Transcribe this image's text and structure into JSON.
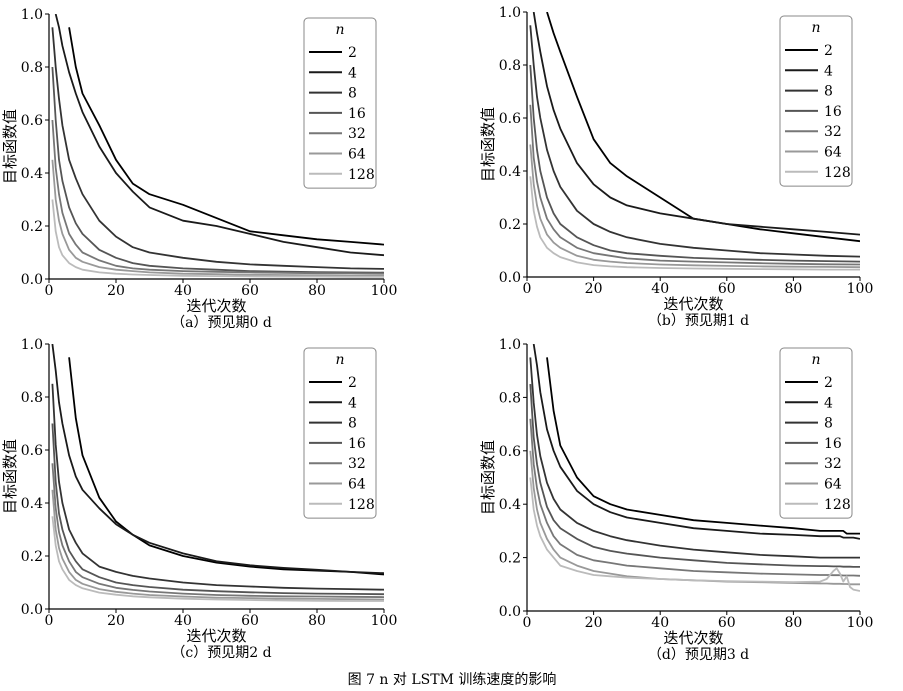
{
  "figure_caption": "图 7 n 对 LSTM 训练速度的影响",
  "chart_data": [
    {
      "type": "line",
      "caption": "（a）预见期0 d",
      "xlabel": "迭代次数",
      "ylabel": "目标函数值",
      "xlim": [
        0,
        100
      ],
      "ylim": [
        0,
        1.0
      ],
      "xticks": [
        "0",
        "20",
        "40",
        "60",
        "80",
        "100"
      ],
      "yticks": [
        "0.0",
        "0.2",
        "0.4",
        "0.6",
        "0.8",
        "1.0"
      ],
      "legend_title": "n",
      "legend_position": "top-right",
      "x": [
        1,
        2,
        3,
        4,
        6,
        8,
        10,
        15,
        20,
        25,
        30,
        40,
        50,
        60,
        70,
        80,
        90,
        100
      ],
      "series": [
        {
          "name": "2",
          "color": "#000000",
          "values": [
            null,
            null,
            null,
            null,
            0.95,
            0.8,
            0.7,
            0.58,
            0.45,
            0.36,
            0.32,
            0.28,
            0.23,
            0.18,
            0.165,
            0.15,
            0.14,
            0.13
          ]
        },
        {
          "name": "4",
          "color": "#1a1a1a",
          "values": [
            null,
            1.0,
            0.95,
            0.88,
            0.78,
            0.7,
            0.63,
            0.5,
            0.4,
            0.33,
            0.27,
            0.22,
            0.2,
            0.17,
            0.14,
            0.12,
            0.1,
            0.09
          ]
        },
        {
          "name": "8",
          "color": "#333333",
          "values": [
            0.95,
            0.8,
            0.68,
            0.58,
            0.45,
            0.38,
            0.32,
            0.22,
            0.16,
            0.12,
            0.1,
            0.08,
            0.065,
            0.055,
            0.05,
            0.045,
            0.04,
            0.038
          ]
        },
        {
          "name": "16",
          "color": "#555555",
          "values": [
            0.8,
            0.6,
            0.45,
            0.37,
            0.27,
            0.21,
            0.17,
            0.11,
            0.08,
            0.06,
            0.05,
            0.04,
            0.035,
            0.03,
            0.028,
            0.026,
            0.025,
            0.024
          ]
        },
        {
          "name": "32",
          "color": "#777777",
          "values": [
            0.6,
            0.42,
            0.32,
            0.25,
            0.17,
            0.13,
            0.1,
            0.07,
            0.05,
            0.04,
            0.035,
            0.03,
            0.027,
            0.025,
            0.023,
            0.022,
            0.021,
            0.02
          ]
        },
        {
          "name": "64",
          "color": "#999999",
          "values": [
            0.45,
            0.3,
            0.22,
            0.17,
            0.11,
            0.08,
            0.065,
            0.045,
            0.035,
            0.03,
            0.025,
            0.02,
            0.018,
            0.016,
            0.015,
            0.014,
            0.013,
            0.012
          ]
        },
        {
          "name": "128",
          "color": "#bbbbbb",
          "values": [
            0.3,
            0.18,
            0.12,
            0.09,
            0.06,
            0.045,
            0.035,
            0.025,
            0.02,
            0.017,
            0.015,
            0.012,
            0.011,
            0.01,
            0.009,
            0.009,
            0.008,
            0.008
          ]
        }
      ]
    },
    {
      "type": "line",
      "caption": "（b）预见期1 d",
      "xlabel": "迭代次数",
      "ylabel": "目标函数值",
      "xlim": [
        0,
        100
      ],
      "ylim": [
        0,
        1.0
      ],
      "xticks": [
        "0",
        "20",
        "40",
        "60",
        "80",
        "100"
      ],
      "yticks": [
        "0.0",
        "0.2",
        "0.4",
        "0.6",
        "0.8",
        "1.0"
      ],
      "legend_title": "n",
      "legend_position": "top-right",
      "x": [
        1,
        2,
        3,
        4,
        6,
        8,
        10,
        15,
        20,
        25,
        30,
        40,
        50,
        60,
        70,
        80,
        90,
        100
      ],
      "series": [
        {
          "name": "2",
          "color": "#000000",
          "values": [
            null,
            null,
            null,
            null,
            1.0,
            0.92,
            0.85,
            0.68,
            0.52,
            0.43,
            0.38,
            0.3,
            0.22,
            0.2,
            0.18,
            0.165,
            0.15,
            0.135
          ]
        },
        {
          "name": "4",
          "color": "#1a1a1a",
          "values": [
            null,
            1.0,
            0.92,
            0.85,
            0.72,
            0.63,
            0.56,
            0.43,
            0.35,
            0.3,
            0.27,
            0.24,
            0.22,
            0.2,
            0.19,
            0.18,
            0.17,
            0.16
          ]
        },
        {
          "name": "8",
          "color": "#333333",
          "values": [
            0.95,
            0.8,
            0.68,
            0.6,
            0.48,
            0.4,
            0.34,
            0.25,
            0.2,
            0.17,
            0.15,
            0.125,
            0.11,
            0.1,
            0.09,
            0.085,
            0.08,
            0.077
          ]
        },
        {
          "name": "16",
          "color": "#555555",
          "values": [
            0.8,
            0.6,
            0.48,
            0.4,
            0.3,
            0.24,
            0.2,
            0.15,
            0.12,
            0.1,
            0.09,
            0.08,
            0.072,
            0.068,
            0.065,
            0.062,
            0.06,
            0.058
          ]
        },
        {
          "name": "32",
          "color": "#777777",
          "values": [
            0.65,
            0.45,
            0.36,
            0.3,
            0.22,
            0.18,
            0.15,
            0.11,
            0.09,
            0.08,
            0.07,
            0.062,
            0.058,
            0.055,
            0.052,
            0.05,
            0.048,
            0.047
          ]
        },
        {
          "name": "64",
          "color": "#999999",
          "values": [
            0.5,
            0.35,
            0.27,
            0.22,
            0.16,
            0.13,
            0.11,
            0.08,
            0.065,
            0.058,
            0.053,
            0.047,
            0.044,
            0.042,
            0.04,
            0.039,
            0.038,
            0.037
          ]
        },
        {
          "name": "128",
          "color": "#bbbbbb",
          "values": [
            0.38,
            0.25,
            0.19,
            0.15,
            0.11,
            0.09,
            0.075,
            0.055,
            0.045,
            0.04,
            0.037,
            0.034,
            0.032,
            0.031,
            0.03,
            0.029,
            0.028,
            0.028
          ]
        }
      ]
    },
    {
      "type": "line",
      "caption": "（c）预见期2 d",
      "xlabel": "迭代次数",
      "ylabel": "目标函数值",
      "xlim": [
        0,
        100
      ],
      "ylim": [
        0,
        1.0
      ],
      "xticks": [
        "0",
        "20",
        "40",
        "60",
        "80",
        "100"
      ],
      "yticks": [
        "0.0",
        "0.2",
        "0.4",
        "0.6",
        "0.8",
        "1.0"
      ],
      "legend_title": "n",
      "legend_position": "top-right",
      "x": [
        1,
        2,
        3,
        4,
        6,
        8,
        10,
        15,
        20,
        25,
        30,
        40,
        50,
        60,
        70,
        80,
        90,
        100
      ],
      "series": [
        {
          "name": "2",
          "color": "#000000",
          "values": [
            null,
            null,
            null,
            null,
            0.95,
            0.72,
            0.58,
            0.42,
            0.33,
            0.28,
            0.24,
            0.2,
            0.175,
            0.16,
            0.15,
            0.145,
            0.14,
            0.13
          ]
        },
        {
          "name": "4",
          "color": "#1a1a1a",
          "values": [
            1.0,
            0.9,
            0.78,
            0.7,
            0.58,
            0.5,
            0.45,
            0.38,
            0.32,
            0.28,
            0.25,
            0.21,
            0.18,
            0.165,
            0.155,
            0.148,
            0.14,
            0.135
          ]
        },
        {
          "name": "8",
          "color": "#333333",
          "values": [
            0.85,
            0.62,
            0.48,
            0.4,
            0.3,
            0.25,
            0.21,
            0.16,
            0.14,
            0.125,
            0.115,
            0.1,
            0.09,
            0.085,
            0.08,
            0.077,
            0.075,
            0.073
          ]
        },
        {
          "name": "16",
          "color": "#555555",
          "values": [
            0.7,
            0.48,
            0.36,
            0.3,
            0.22,
            0.18,
            0.15,
            0.12,
            0.1,
            0.09,
            0.083,
            0.073,
            0.067,
            0.063,
            0.06,
            0.058,
            0.057,
            0.056
          ]
        },
        {
          "name": "32",
          "color": "#777777",
          "values": [
            0.55,
            0.38,
            0.29,
            0.24,
            0.18,
            0.14,
            0.12,
            0.095,
            0.08,
            0.072,
            0.066,
            0.058,
            0.053,
            0.05,
            0.048,
            0.047,
            0.046,
            0.045
          ]
        },
        {
          "name": "64",
          "color": "#999999",
          "values": [
            0.45,
            0.3,
            0.23,
            0.19,
            0.14,
            0.11,
            0.095,
            0.075,
            0.065,
            0.058,
            0.053,
            0.047,
            0.043,
            0.041,
            0.039,
            0.038,
            0.037,
            0.036
          ]
        },
        {
          "name": "128",
          "color": "#bbbbbb",
          "values": [
            0.35,
            0.24,
            0.18,
            0.15,
            0.11,
            0.09,
            0.078,
            0.062,
            0.054,
            0.048,
            0.044,
            0.039,
            0.036,
            0.034,
            0.032,
            0.031,
            0.03,
            0.03
          ]
        }
      ]
    },
    {
      "type": "line",
      "caption": "（d）预见期3 d",
      "xlabel": "迭代次数",
      "ylabel": "目标函数值",
      "xlim": [
        0,
        100
      ],
      "ylim": [
        0,
        1.0
      ],
      "xticks": [
        "0",
        "20",
        "40",
        "60",
        "80",
        "100"
      ],
      "yticks": [
        "0.0",
        "0.2",
        "0.4",
        "0.6",
        "0.8",
        "1.0"
      ],
      "legend_title": "n",
      "legend_position": "top-right",
      "x": [
        1,
        2,
        3,
        4,
        6,
        8,
        10,
        15,
        20,
        25,
        30,
        40,
        50,
        60,
        70,
        80,
        88,
        90,
        92,
        93,
        94,
        95,
        96,
        97,
        98,
        100
      ],
      "series": [
        {
          "name": "2",
          "color": "#000000",
          "values": [
            null,
            null,
            null,
            null,
            0.95,
            0.75,
            0.62,
            0.5,
            0.43,
            0.4,
            0.38,
            0.36,
            0.34,
            0.33,
            0.32,
            0.31,
            0.3,
            0.3,
            0.3,
            0.3,
            0.3,
            0.3,
            0.29,
            0.29,
            0.29,
            0.29
          ]
        },
        {
          "name": "4",
          "color": "#1a1a1a",
          "values": [
            null,
            1.0,
            0.92,
            0.82,
            0.68,
            0.6,
            0.54,
            0.45,
            0.4,
            0.37,
            0.35,
            0.33,
            0.31,
            0.3,
            0.29,
            0.285,
            0.28,
            0.28,
            0.28,
            0.28,
            0.28,
            0.275,
            0.275,
            0.275,
            0.275,
            0.27
          ]
        },
        {
          "name": "8",
          "color": "#333333",
          "values": [
            0.95,
            0.78,
            0.66,
            0.58,
            0.48,
            0.42,
            0.38,
            0.33,
            0.3,
            0.28,
            0.265,
            0.245,
            0.23,
            0.22,
            0.21,
            0.205,
            0.2,
            0.2,
            0.2,
            0.2,
            0.2,
            0.2,
            0.2,
            0.2,
            0.2,
            0.2
          ]
        },
        {
          "name": "16",
          "color": "#555555",
          "values": [
            0.85,
            0.65,
            0.55,
            0.48,
            0.39,
            0.34,
            0.31,
            0.27,
            0.24,
            0.225,
            0.215,
            0.2,
            0.19,
            0.18,
            0.175,
            0.17,
            0.168,
            0.168,
            0.167,
            0.167,
            0.167,
            0.166,
            0.166,
            0.166,
            0.165,
            0.165
          ]
        },
        {
          "name": "32",
          "color": "#777777",
          "values": [
            0.72,
            0.55,
            0.46,
            0.4,
            0.33,
            0.28,
            0.25,
            0.21,
            0.19,
            0.18,
            0.17,
            0.16,
            0.15,
            0.145,
            0.14,
            0.137,
            0.135,
            0.135,
            0.134,
            0.134,
            0.134,
            0.133,
            0.133,
            0.133,
            0.133,
            0.132
          ]
        },
        {
          "name": "64",
          "color": "#999999",
          "values": [
            0.6,
            0.46,
            0.38,
            0.33,
            0.27,
            0.23,
            0.2,
            0.17,
            0.15,
            0.14,
            0.13,
            0.12,
            0.115,
            0.11,
            0.108,
            0.105,
            0.103,
            0.103,
            0.102,
            0.102,
            0.102,
            0.101,
            0.101,
            0.1,
            0.1,
            0.1
          ]
        },
        {
          "name": "128",
          "color": "#bbbbbb",
          "values": [
            0.5,
            0.38,
            0.32,
            0.28,
            0.23,
            0.2,
            0.17,
            0.15,
            0.135,
            0.13,
            0.125,
            0.12,
            0.115,
            0.112,
            0.11,
            0.108,
            0.11,
            0.12,
            0.15,
            0.16,
            0.14,
            0.11,
            0.13,
            0.09,
            0.08,
            0.075
          ]
        }
      ]
    }
  ]
}
